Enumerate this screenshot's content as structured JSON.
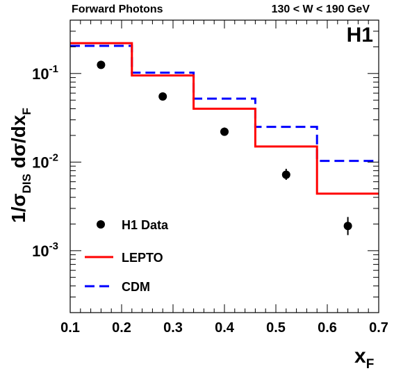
{
  "header": {
    "left_title": "Forward Photons",
    "right_title": "130 < W < 190 GeV",
    "logo": "H1"
  },
  "chart_data": {
    "type": "scatter",
    "xlabel": "x_F",
    "ylabel": "1/σ_DIS dσ/dx_F",
    "xlim": [
      0.1,
      0.7
    ],
    "ylim": [
      0.0002,
      0.4
    ],
    "y_scale": "log",
    "x_ticks": [
      "0.1",
      "0.2",
      "0.3",
      "0.4",
      "0.5",
      "0.6",
      "0.7"
    ],
    "y_ticks": [
      {
        "value": 0.1,
        "base": "10",
        "exp": "-1"
      },
      {
        "value": 0.01,
        "base": "10",
        "exp": "-2"
      },
      {
        "value": 0.001,
        "base": "10",
        "exp": "-3"
      }
    ],
    "grid": false,
    "legend_position": "lower-left",
    "series": [
      {
        "name": "H1 Data",
        "kind": "points",
        "color": "#000000",
        "x": [
          0.16,
          0.28,
          0.4,
          0.52,
          0.64
        ],
        "y": [
          0.125,
          0.055,
          0.022,
          0.0072,
          0.0019
        ],
        "err_low": [
          0.005,
          0.003,
          0.002,
          0.0009,
          0.0004
        ],
        "err_high": [
          0.005,
          0.003,
          0.0025,
          0.0012,
          0.0005
        ]
      },
      {
        "name": "LEPTO",
        "kind": "step",
        "color": "#ff0000",
        "dash": "solid",
        "bin_edges": [
          0.1,
          0.22,
          0.34,
          0.46,
          0.58,
          0.7
        ],
        "values": [
          0.22,
          0.095,
          0.04,
          0.015,
          0.0044
        ]
      },
      {
        "name": "CDM",
        "kind": "step",
        "color": "#0000ff",
        "dash": "dashed",
        "bin_edges": [
          0.1,
          0.22,
          0.34,
          0.46,
          0.58,
          0.7
        ],
        "values": [
          0.205,
          0.102,
          0.052,
          0.025,
          0.0103
        ]
      }
    ]
  }
}
